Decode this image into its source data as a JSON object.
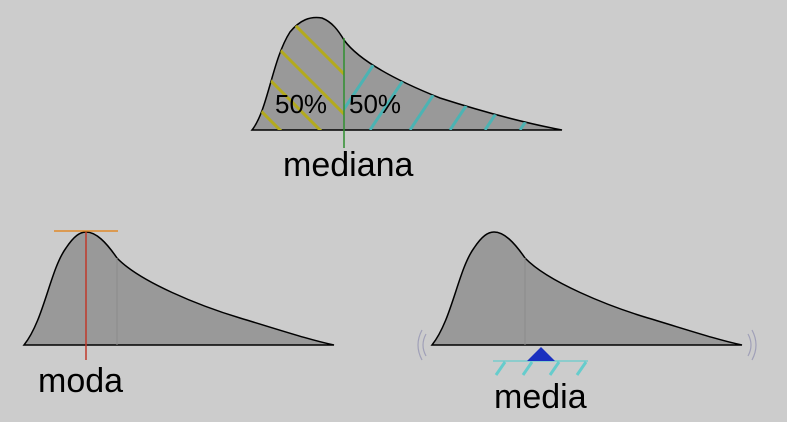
{
  "panels": {
    "median": {
      "label": "mediana",
      "left_share": "50%",
      "right_share": "50%"
    },
    "mode": {
      "label": "moda"
    },
    "mean": {
      "label": "media"
    }
  },
  "colors": {
    "background": "#cccccc",
    "curve_fill": "#999999",
    "outline": "#000000",
    "hatch_left": "#b3aa1e",
    "hatch_right": "#4cb3b3",
    "median_line": "#2f8f2f",
    "mode_line": "#c0392b",
    "mode_tangent": "#e08a2a",
    "fulcrum": "#1a2fbf",
    "fulcrum_hatch": "#66cccc",
    "balance_marks": "#a0a0b8"
  }
}
